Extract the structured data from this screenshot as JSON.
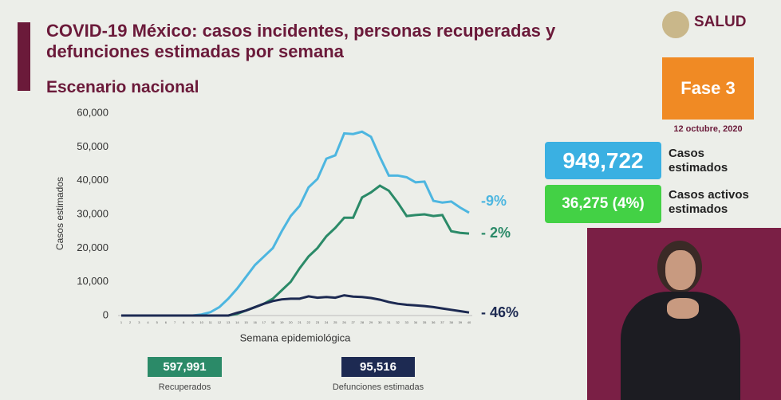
{
  "title": "COVID-19 México: casos incidentes, personas recuperadas y defunciones estimadas por semana",
  "subtitle": "Escenario nacional",
  "logo": "SALUD",
  "phase": "Fase 3",
  "date": "12 octubre, 2020",
  "cards": [
    {
      "value": "949,722",
      "label": "Casos estimados"
    },
    {
      "value": "36,275 (4%)",
      "label": "Casos activos estimados"
    }
  ],
  "totals": [
    {
      "value": "597,991",
      "label": "Recuperados"
    },
    {
      "value": "95,516",
      "label": "Defunciones estimadas"
    }
  ],
  "chart_data": {
    "type": "line",
    "x_label": "Semana epidemiológica",
    "y_label": "Casos estimados",
    "x": [
      1,
      2,
      3,
      4,
      5,
      6,
      7,
      8,
      9,
      10,
      11,
      12,
      13,
      14,
      15,
      16,
      17,
      18,
      19,
      20,
      21,
      22,
      23,
      24,
      25,
      26,
      27,
      28,
      29,
      30,
      31,
      32,
      33,
      34,
      35,
      36,
      37,
      38,
      39,
      40
    ],
    "xlim": [
      1,
      40
    ],
    "ylim": [
      0,
      60000
    ],
    "yticks": [
      0,
      {
        "value": 10000,
        "label": "10,000"
      },
      {
        "value": 20000,
        "label": "20,000"
      },
      {
        "value": 30000,
        "label": "30,000"
      },
      {
        "value": 40000,
        "label": "40,000"
      },
      {
        "value": 50000,
        "label": "50,000"
      },
      {
        "value": 60000,
        "label": "60,000"
      }
    ],
    "series": [
      {
        "color": "#4db6e0",
        "annotation": "-9%",
        "values": [
          0,
          0,
          0,
          0,
          0,
          0,
          0,
          0,
          0,
          300,
          1000,
          2500,
          5000,
          8000,
          11500,
          15000,
          17500,
          20000,
          25000,
          29500,
          32500,
          38000,
          40500,
          46500,
          47500,
          54000,
          53800,
          54500,
          53000,
          47000,
          41500,
          41500,
          41000,
          39500,
          39700,
          34000,
          33500,
          33800,
          32000,
          30500
        ]
      },
      {
        "color": "#2b8a68",
        "annotation": "- 2%",
        "values": [
          0,
          0,
          0,
          0,
          0,
          0,
          0,
          0,
          0,
          0,
          0,
          0,
          0,
          500,
          1500,
          2500,
          3500,
          5000,
          7500,
          10000,
          14000,
          17500,
          20000,
          23500,
          26000,
          29000,
          29000,
          35000,
          36500,
          38500,
          37000,
          33500,
          29500,
          29800,
          30000,
          29500,
          29800,
          25000,
          24500,
          24300
        ]
      },
      {
        "color": "#1d2a52",
        "annotation": "- 46%",
        "values": [
          0,
          0,
          0,
          0,
          0,
          0,
          0,
          0,
          0,
          0,
          0,
          0,
          0,
          800,
          1500,
          2500,
          3500,
          4300,
          4800,
          5000,
          5000,
          5700,
          5300,
          5500,
          5300,
          6000,
          5600,
          5500,
          5200,
          4700,
          4000,
          3500,
          3200,
          3000,
          2800,
          2500,
          2100,
          1700,
          1300,
          900
        ]
      }
    ]
  }
}
